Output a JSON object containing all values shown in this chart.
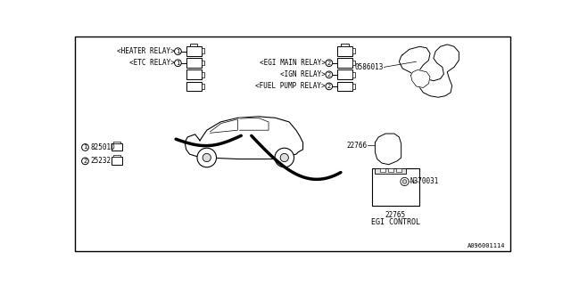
{
  "bg_color": "#ffffff",
  "line_color": "#000000",
  "fig_width": 6.4,
  "fig_height": 3.2,
  "dpi": 100,
  "footer": "A096001114",
  "labels": {
    "heater_relay": "<HEATER RELAY>",
    "etc_relay": "<ETC RELAY>",
    "egi_main_relay": "<EGI MAIN RELAY>",
    "ign_relay": "<IGN RELAY>",
    "fuel_pump_relay": "<FUEL PUMP RELAY>",
    "part1": "82501D",
    "part2": "25232",
    "part3": "0586013",
    "part4": "22766",
    "part5": "N370031",
    "part6": "22765",
    "egi_control": "EGI CONTROL"
  }
}
